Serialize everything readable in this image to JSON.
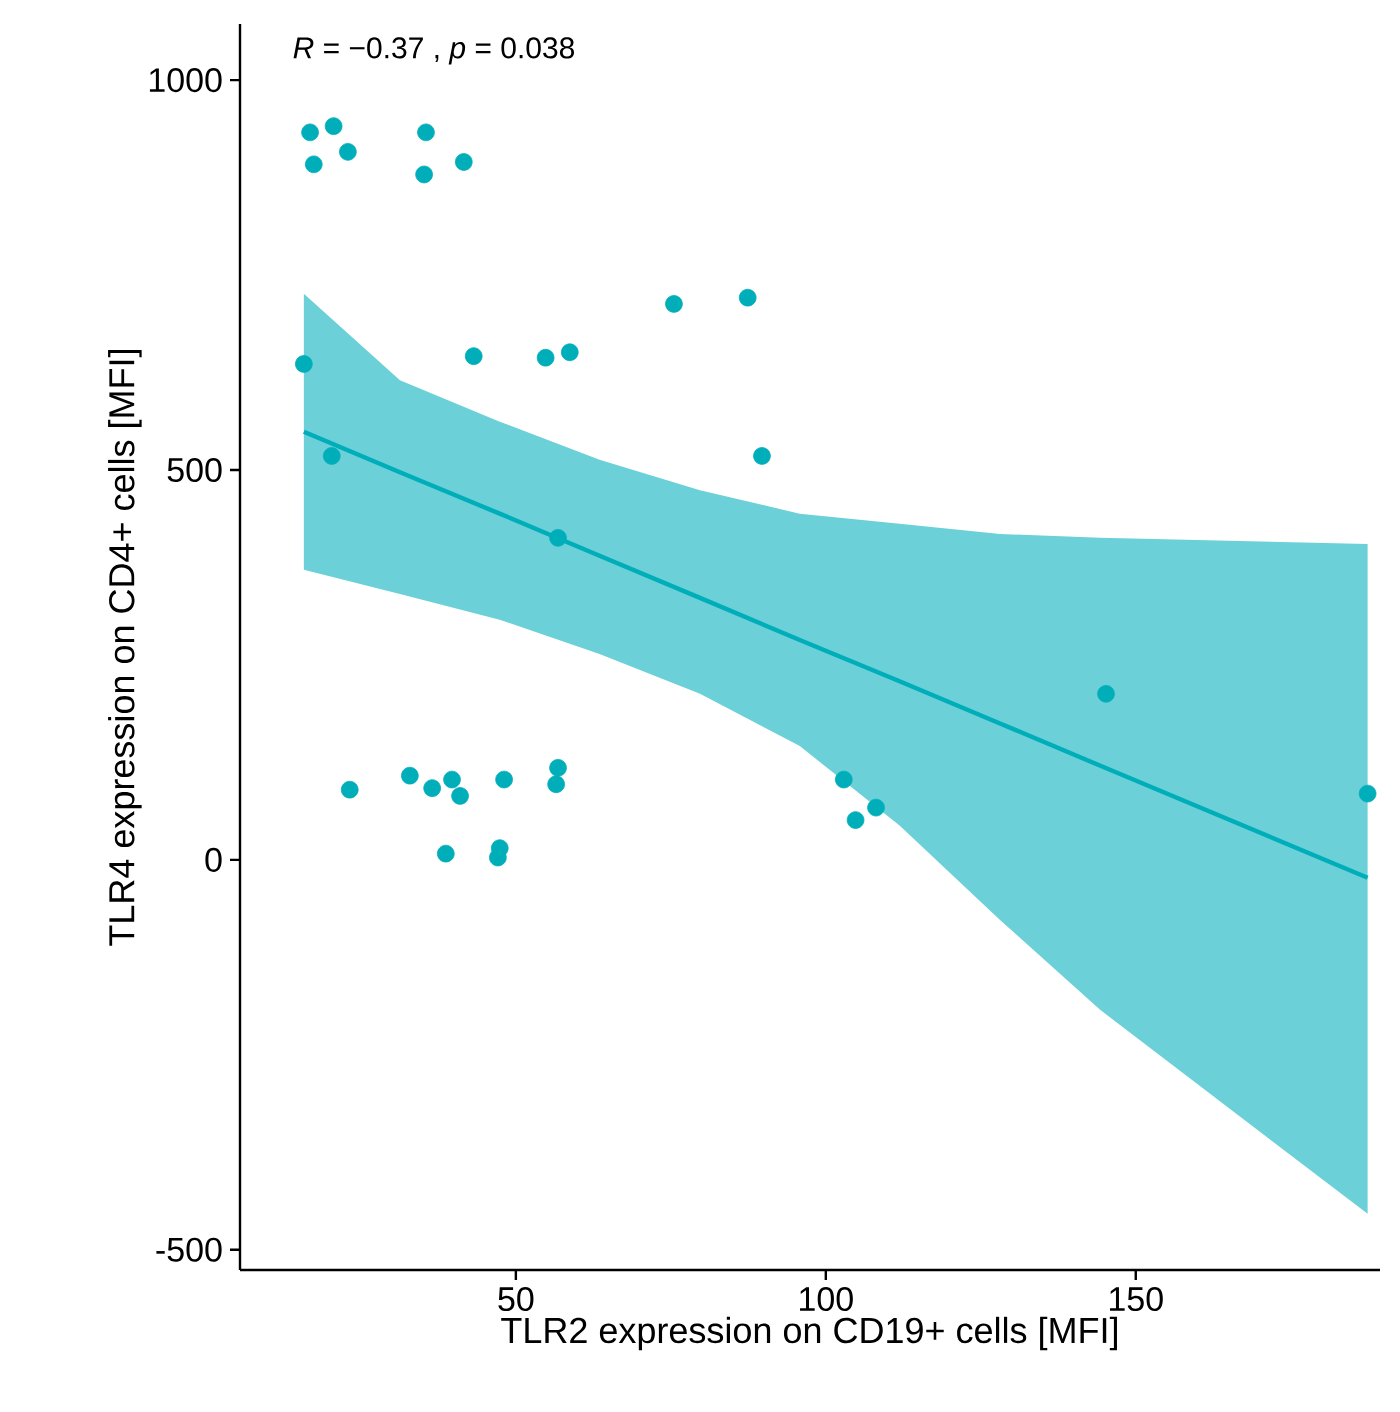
{
  "chart_data": {
    "type": "scatter",
    "xlabel": "TLR2 expression on CD19+ cells [MFI]",
    "ylabel": "TLR4 expression on CD4+ cells [MFI]",
    "annotations": [
      "*R* = −0.37 , *p* = 0.038"
    ],
    "xlim": [
      5.5,
      189.4
    ],
    "ylim": [
      -526,
      1072
    ],
    "xticks": [
      50,
      100,
      150
    ],
    "yticks": [
      -500,
      0,
      500,
      1000
    ],
    "grid": false,
    "series": [
      {
        "marker": "circle",
        "color": "#00aeba",
        "x": [
          16.8,
          20.6,
          17.4,
          22.9,
          35.5,
          35.2,
          41.6,
          15.8,
          43.2,
          54.8,
          58.7,
          75.5,
          87.4,
          89.7,
          20.3,
          56.8,
          23.2,
          32.9,
          36.5,
          39.7,
          41.0,
          48.1,
          56.8,
          56.5,
          38.7,
          47.4,
          47.1,
          102.9,
          104.8,
          108.1,
          145.2,
          187.4
        ],
        "values": [
          933,
          941,
          892,
          908,
          933,
          879,
          895,
          636,
          646,
          644,
          651,
          713,
          721,
          518,
          518,
          413,
          90,
          108,
          92,
          103,
          82,
          103,
          118,
          97,
          8,
          15,
          3,
          103,
          51,
          67,
          213,
          85
        ]
      },
      {
        "type": "line",
        "marker": "none",
        "color": "#00aeba",
        "line_style": "solid",
        "x": [
          15.8,
          31.3,
          47.4,
          63.5,
          79.7,
          95.8,
          111.9,
          128.1,
          144.2,
          187.4
        ],
        "values": [
          549,
          497,
          444,
          390,
          336,
          282,
          229,
          175,
          121,
          -23
        ],
        "lower": [
          372,
          341,
          308,
          264,
          213,
          146,
          44,
          -77,
          -192,
          -454
        ],
        "upper": [
          726,
          615,
          562,
          513,
          474,
          444,
          431,
          418,
          413,
          405
        ]
      }
    ]
  }
}
